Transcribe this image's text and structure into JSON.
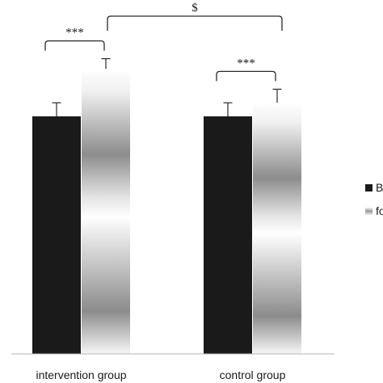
{
  "chart_data": {
    "type": "bar",
    "title": "",
    "xlabel": "",
    "ylabel": "",
    "ylim": [
      0,
      100
    ],
    "categories": [
      "intervention group",
      "control group"
    ],
    "series": [
      {
        "name": "B",
        "color": "#1a1a1a",
        "fill": "solid",
        "values": [
          70,
          70
        ],
        "errors": [
          4,
          4
        ]
      },
      {
        "name": "fo",
        "color": "#9a9a9a",
        "fill": "gradient",
        "values": [
          84,
          74
        ],
        "errors": [
          3,
          4
        ]
      }
    ],
    "annotations": [
      {
        "text": "***",
        "type": "within",
        "category": 0
      },
      {
        "text": "***",
        "type": "within",
        "category": 1
      },
      {
        "text": "$",
        "type": "between",
        "series": 1
      }
    ],
    "legend": {
      "position": "right",
      "clipped": true
    }
  }
}
